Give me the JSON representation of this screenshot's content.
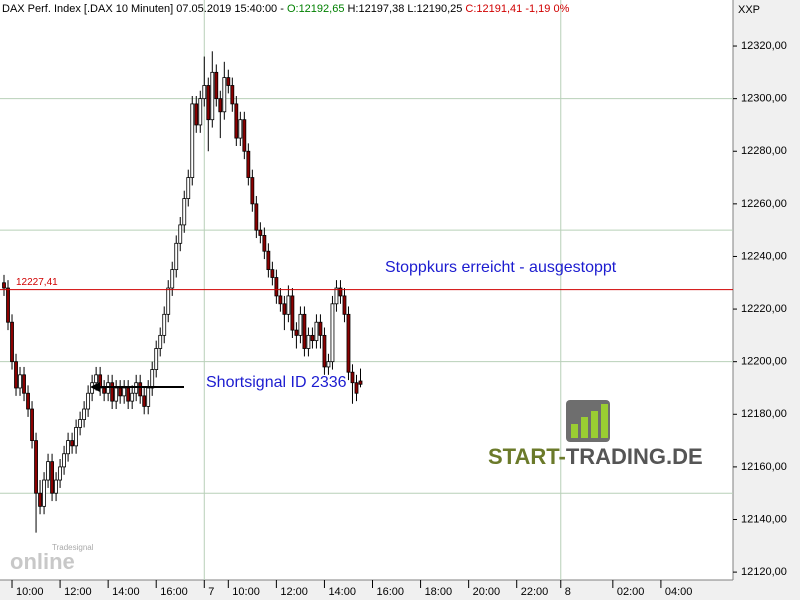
{
  "chart_data": {
    "type": "candlestick",
    "header": {
      "instrument": "DAX Perf. Index [.DAX  10 Minuten] 07.05.2019 15:40:00 - ",
      "open": "O:12192,65",
      "high": "H:12197,38",
      "low": "L:12190,25",
      "close": "C:12191,41 -1,19 0%"
    },
    "exchange": "XXP",
    "ylim": [
      12117,
      12337.5
    ],
    "yticks": [
      {
        "value": 12120,
        "label": "12120,00"
      },
      {
        "value": 12140,
        "label": "12140,00"
      },
      {
        "value": 12160,
        "label": "12160,00"
      },
      {
        "value": 12180,
        "label": "12180,00"
      },
      {
        "value": 12200,
        "label": "12200,00"
      },
      {
        "value": 12220,
        "label": "12220,00"
      },
      {
        "value": 12240,
        "label": "12240,00"
      },
      {
        "value": 12260,
        "label": "12260,00"
      },
      {
        "value": 12280,
        "label": "12280,00"
      },
      {
        "value": 12300,
        "label": "12300,00"
      },
      {
        "value": 12320,
        "label": "12320,00"
      }
    ],
    "ygrid": [
      12150,
      12200,
      12250,
      12300
    ],
    "xlim": [
      -1,
      182
    ],
    "xticks": [
      {
        "value": 2,
        "label": "10:00"
      },
      {
        "value": 14,
        "label": "12:00"
      },
      {
        "value": 26,
        "label": "14:00"
      },
      {
        "value": 38,
        "label": "16:00"
      },
      {
        "value": 50,
        "label": "7"
      },
      {
        "value": 56,
        "label": "10:00"
      },
      {
        "value": 68,
        "label": "12:00"
      },
      {
        "value": 80,
        "label": "14:00"
      },
      {
        "value": 92,
        "label": "16:00"
      },
      {
        "value": 104,
        "label": "18:00"
      },
      {
        "value": 116,
        "label": "20:00"
      },
      {
        "value": 128,
        "label": "22:00"
      },
      {
        "value": 139,
        "label": "8"
      },
      {
        "value": 152,
        "label": "02:00"
      },
      {
        "value": 164,
        "label": "04:00"
      }
    ],
    "xgrid": [
      50,
      139
    ],
    "up_color": "#ffffff",
    "down_color": "#8b0000",
    "wick_color": "#000000",
    "ohlc": [
      [
        12230,
        12233,
        12225,
        12228
      ],
      [
        12228,
        12231,
        12212,
        12215
      ],
      [
        12215,
        12218,
        12197,
        12200
      ],
      [
        12200,
        12203,
        12187,
        12190
      ],
      [
        12190,
        12198,
        12187,
        12195
      ],
      [
        12195,
        12198,
        12185,
        12188
      ],
      [
        12188,
        12191,
        12179,
        12182
      ],
      [
        12182,
        12185,
        12167,
        12170
      ],
      [
        12170,
        12173,
        12135,
        12150
      ],
      [
        12150,
        12155,
        12142,
        12145
      ],
      [
        12145,
        12158,
        12142,
        12155
      ],
      [
        12155,
        12165,
        12152,
        12162
      ],
      [
        12162,
        12165,
        12147,
        12150
      ],
      [
        12150,
        12158,
        12147,
        12155
      ],
      [
        12155,
        12163,
        12152,
        12160
      ],
      [
        12160,
        12168,
        12157,
        12165
      ],
      [
        12165,
        12173,
        12162,
        12170
      ],
      [
        12170,
        12173,
        12165,
        12168
      ],
      [
        12168,
        12178,
        12165,
        12175
      ],
      [
        12175,
        12181,
        12172,
        12178
      ],
      [
        12178,
        12185,
        12175,
        12182
      ],
      [
        12182,
        12191,
        12179,
        12188
      ],
      [
        12188,
        12195,
        12185,
        12192
      ],
      [
        12192,
        12198,
        12189,
        12195
      ],
      [
        12195,
        12198,
        12187,
        12190
      ],
      [
        12190,
        12193,
        12185,
        12188
      ],
      [
        12188,
        12195,
        12185,
        12192
      ],
      [
        12192,
        12195,
        12182,
        12185
      ],
      [
        12185,
        12193,
        12182,
        12190
      ],
      [
        12190,
        12193,
        12184,
        12187
      ],
      [
        12187,
        12193,
        12184,
        12190
      ],
      [
        12190,
        12193,
        12182,
        12185
      ],
      [
        12185,
        12191,
        12182,
        12188
      ],
      [
        12188,
        12195,
        12185,
        12192
      ],
      [
        12192,
        12195,
        12184,
        12187
      ],
      [
        12187,
        12190,
        12180,
        12183
      ],
      [
        12183,
        12193,
        12180,
        12190
      ],
      [
        12190,
        12200,
        12187,
        12197
      ],
      [
        12197,
        12208,
        12194,
        12205
      ],
      [
        12205,
        12213,
        12202,
        12210
      ],
      [
        12210,
        12221,
        12207,
        12218
      ],
      [
        12218,
        12231,
        12215,
        12228
      ],
      [
        12228,
        12238,
        12225,
        12235
      ],
      [
        12235,
        12248,
        12232,
        12245
      ],
      [
        12245,
        12255,
        12242,
        12252
      ],
      [
        12252,
        12265,
        12249,
        12262
      ],
      [
        12262,
        12273,
        12259,
        12270
      ],
      [
        12270,
        12301,
        12267,
        12298
      ],
      [
        12298,
        12301,
        12287,
        12290
      ],
      [
        12290,
        12303,
        12287,
        12300
      ],
      [
        12300,
        12316,
        12297,
        12305
      ],
      [
        12305,
        12308,
        12280,
        12292
      ],
      [
        12292,
        12318,
        12289,
        12310
      ],
      [
        12310,
        12313,
        12297,
        12300
      ],
      [
        12300,
        12303,
        12285,
        12295
      ],
      [
        12295,
        12314,
        12292,
        12308
      ],
      [
        12308,
        12311,
        12302,
        12305
      ],
      [
        12305,
        12308,
        12295,
        12298
      ],
      [
        12298,
        12301,
        12282,
        12285
      ],
      [
        12285,
        12295,
        12282,
        12292
      ],
      [
        12292,
        12295,
        12277,
        12280
      ],
      [
        12280,
        12283,
        12267,
        12270
      ],
      [
        12270,
        12273,
        12257,
        12260
      ],
      [
        12260,
        12263,
        12247,
        12250
      ],
      [
        12250,
        12253,
        12245,
        12248
      ],
      [
        12248,
        12251,
        12239,
        12242
      ],
      [
        12242,
        12245,
        12232,
        12235
      ],
      [
        12235,
        12238,
        12229,
        12232
      ],
      [
        12232,
        12235,
        12222,
        12225
      ],
      [
        12225,
        12228,
        12219,
        12222
      ],
      [
        12222,
        12225,
        12212,
        12218
      ],
      [
        12218,
        12229,
        12215,
        12225
      ],
      [
        12225,
        12228,
        12209,
        12212
      ],
      [
        12212,
        12215,
        12205,
        12210
      ],
      [
        12210,
        12221,
        12207,
        12218
      ],
      [
        12218,
        12221,
        12202,
        12205
      ],
      [
        12205,
        12213,
        12202,
        12210
      ],
      [
        12210,
        12213,
        12205,
        12208
      ],
      [
        12208,
        12218,
        12205,
        12215
      ],
      [
        12215,
        12218,
        12205,
        12210
      ],
      [
        12210,
        12213,
        12195,
        12198
      ],
      [
        12198,
        12203,
        12195,
        12200
      ],
      [
        12200,
        12225,
        12197,
        12222
      ],
      [
        12222,
        12231,
        12219,
        12228
      ],
      [
        12228,
        12231,
        12222,
        12225
      ],
      [
        12225,
        12228,
        12215,
        12218
      ],
      [
        12218,
        12221,
        12193,
        12196
      ],
      [
        12196,
        12199,
        12184,
        12192
      ],
      [
        12192,
        12195,
        12185,
        12188
      ],
      [
        12192.65,
        12197.38,
        12190.25,
        12191.41
      ]
    ],
    "stop_line": {
      "value": 12227.41,
      "label": "12227,41",
      "color": "#d00000"
    },
    "annotations": {
      "stop": "Stoppkurs erreicht - ausgestoppt",
      "signal": "Shortsignal ID 2336"
    },
    "logo": {
      "part1": "START-",
      "part2": "TRADING.DE"
    },
    "watermark": {
      "brand": "Tradesignal",
      "product": "online"
    }
  }
}
